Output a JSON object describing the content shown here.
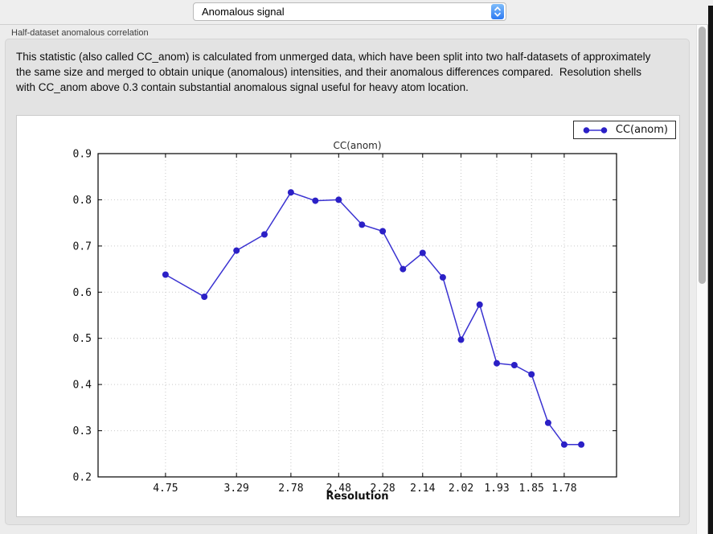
{
  "toolbar": {
    "plot_selector": {
      "value": "Anomalous signal"
    }
  },
  "section": {
    "label": "Half-dataset anomalous correlation",
    "description": "This statistic (also called CC_anom) is calculated from unmerged data, which have been split into two half-datasets of approximately the same size and merged to obtain unique (anomalous) intensities, and their anomalous differences compared.  Resolution shells with CC_anom above 0.3 contain substantial anomalous signal useful for heavy atom location."
  },
  "chart_data": {
    "type": "line",
    "title": "CC(anom)",
    "xlabel": "Resolution",
    "ylabel": "",
    "ylim": [
      0.2,
      0.9
    ],
    "y_ticks": [
      0.2,
      0.3,
      0.4,
      0.5,
      0.6,
      0.7,
      0.8,
      0.9
    ],
    "grid": true,
    "legend_position": "top-right",
    "x_ticks": {
      "labels": [
        "4.75",
        "3.29",
        "2.78",
        "2.48",
        "2.28",
        "2.14",
        "2.02",
        "1.93",
        "1.85",
        "1.78"
      ],
      "fracs": [
        0.13,
        0.267,
        0.372,
        0.464,
        0.549,
        0.626,
        0.7,
        0.769,
        0.836,
        0.899
      ]
    },
    "series": [
      {
        "name": "CC(anom)",
        "line_color": "#3a32d1",
        "marker_color": "#2b20c6",
        "x_fracs": [
          0.13,
          0.205,
          0.267,
          0.321,
          0.372,
          0.419,
          0.464,
          0.509,
          0.549,
          0.588,
          0.626,
          0.665,
          0.7,
          0.736,
          0.769,
          0.803,
          0.836,
          0.868,
          0.899,
          0.932
        ],
        "values": [
          0.638,
          0.59,
          0.69,
          0.725,
          0.816,
          0.798,
          0.8,
          0.746,
          0.732,
          0.65,
          0.685,
          0.632,
          0.497,
          0.573,
          0.446,
          0.442,
          0.422,
          0.317,
          0.27,
          0.27
        ]
      }
    ]
  }
}
